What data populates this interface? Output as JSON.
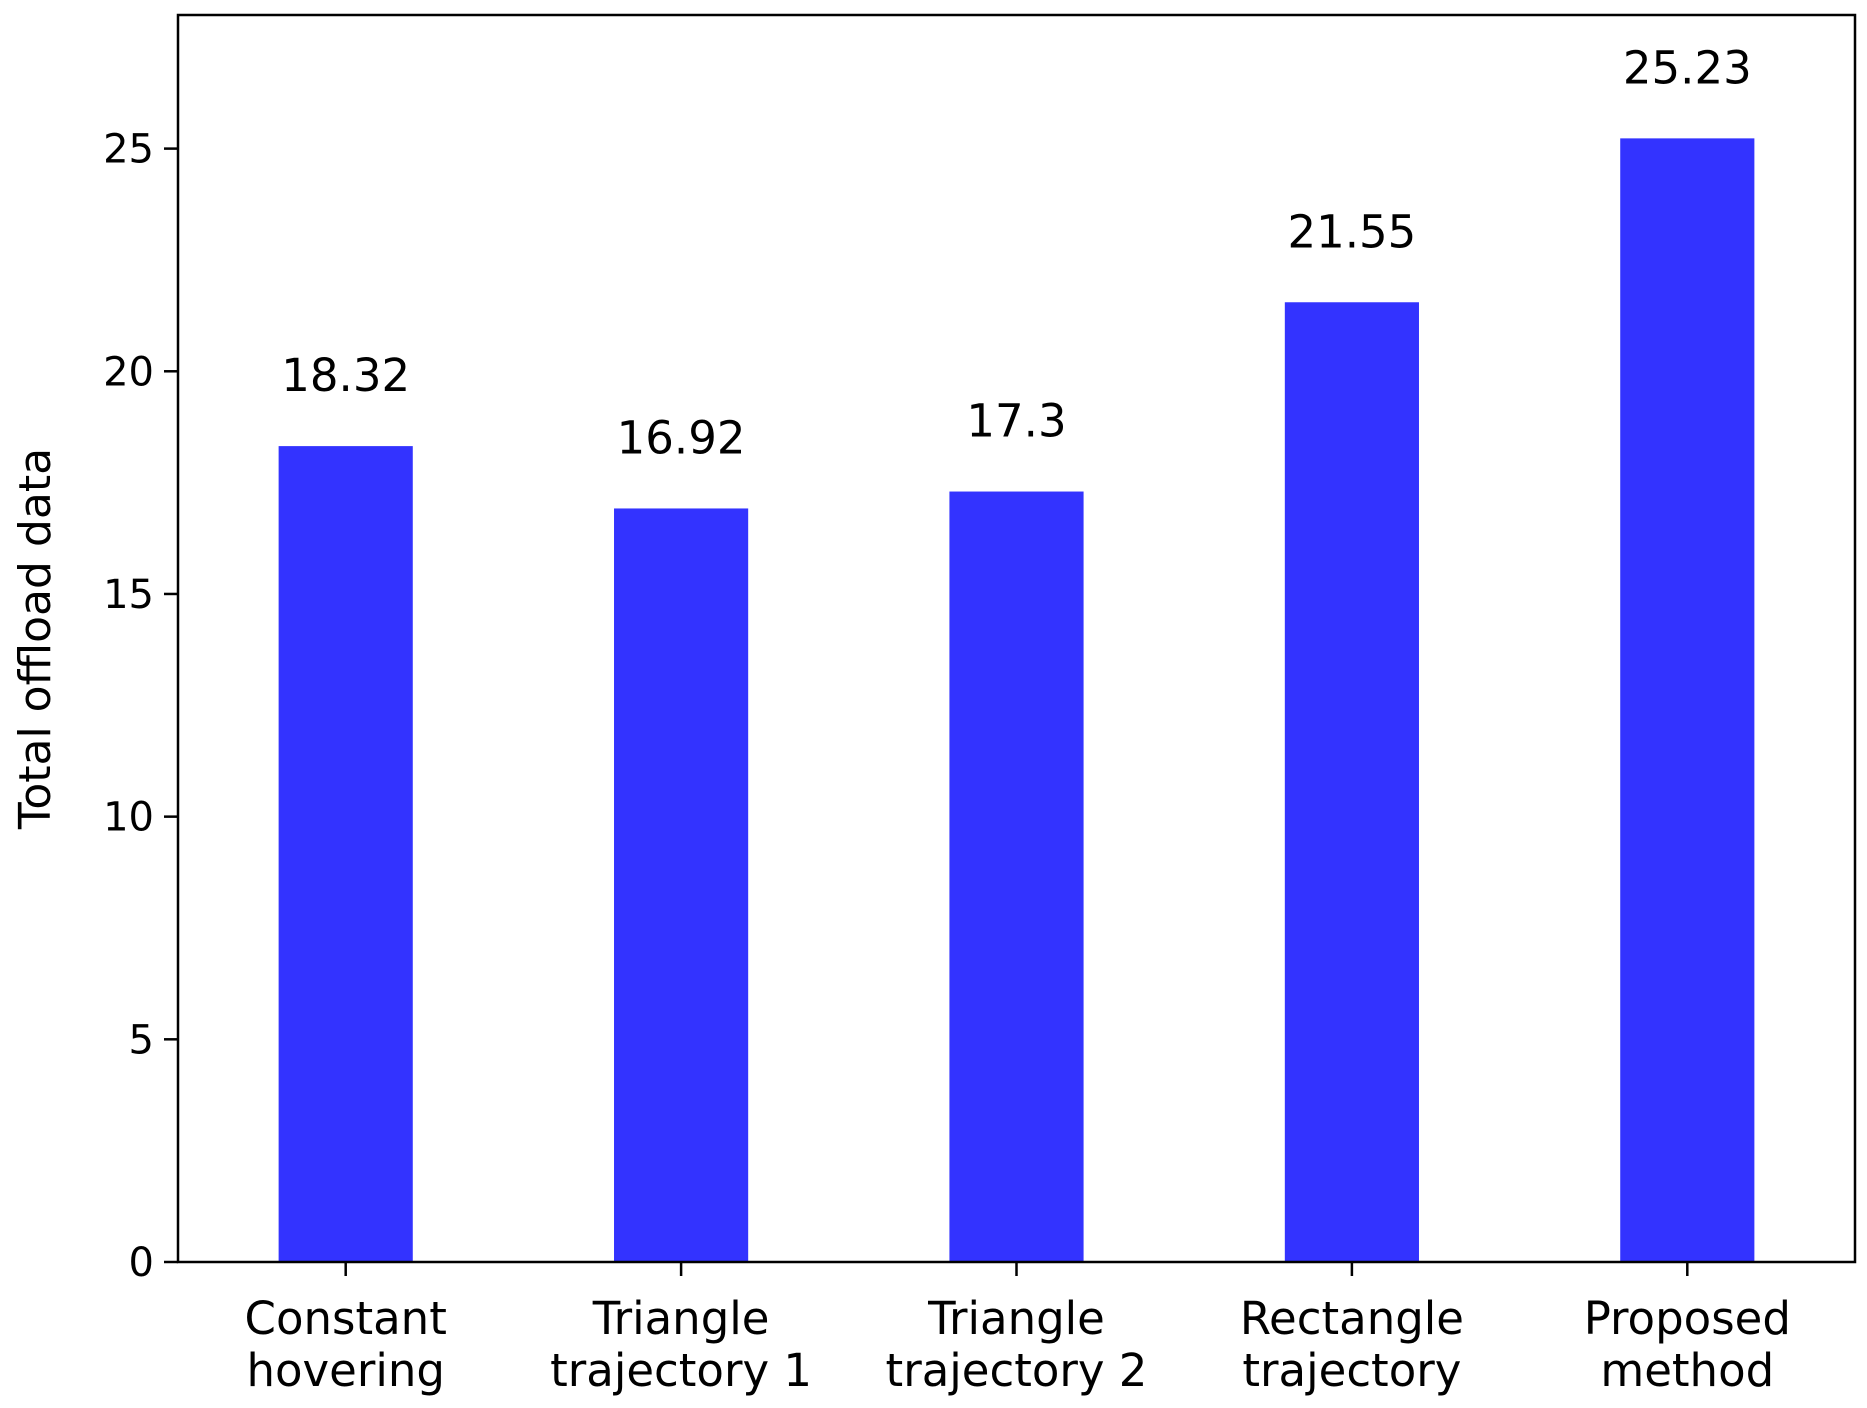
{
  "chart_data": {
    "type": "bar",
    "categories": [
      [
        "Constant",
        "hovering"
      ],
      [
        "Triangle",
        "trajectory 1"
      ],
      [
        "Triangle",
        "trajectory 2"
      ],
      [
        "Rectangle",
        "trajectory"
      ],
      [
        "Proposed",
        "method"
      ]
    ],
    "values": [
      18.32,
      16.92,
      17.3,
      21.55,
      25.23
    ],
    "value_labels": [
      "18.32",
      "16.92",
      "17.3",
      "21.55",
      "25.23"
    ],
    "ylabel": "Total offload data",
    "xlabel": "",
    "ylim": [
      0,
      28
    ],
    "yticks": [
      0,
      5,
      10,
      15,
      20,
      25
    ],
    "bar_color": "#3333ff",
    "grid": false,
    "legend": "none"
  }
}
